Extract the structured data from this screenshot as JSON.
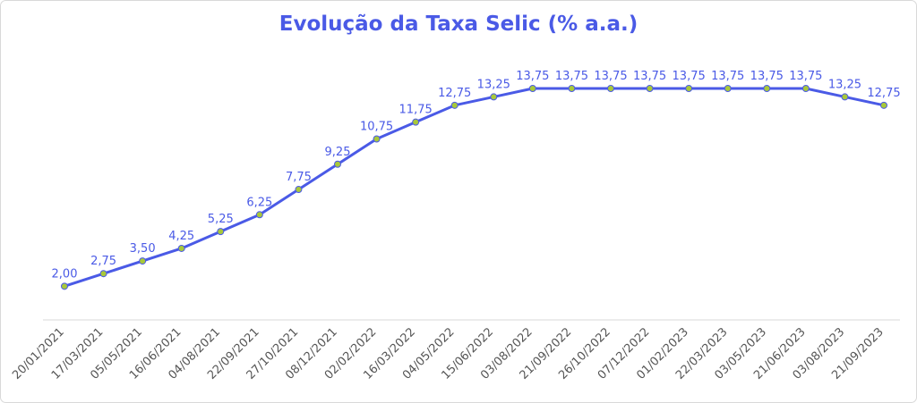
{
  "chart_data": {
    "type": "line",
    "title": "Evolução da Taxa Selic (% a.a.)",
    "categories": [
      "20/01/2021",
      "17/03/2021",
      "05/05/2021",
      "16/06/2021",
      "04/08/2021",
      "22/09/2021",
      "27/10/2021",
      "08/12/2021",
      "02/02/2022",
      "16/03/2022",
      "04/05/2022",
      "15/06/2022",
      "03/08/2022",
      "21/09/2022",
      "26/10/2022",
      "07/12/2022",
      "01/02/2023",
      "22/03/2023",
      "03/05/2023",
      "21/06/2023",
      "03/08/2023",
      "21/09/2023"
    ],
    "series": [
      {
        "color": "#4a5ae6",
        "marker_color": "#a8c83a",
        "values": [
          2.0,
          2.75,
          3.5,
          4.25,
          5.25,
          6.25,
          7.75,
          9.25,
          10.75,
          11.75,
          12.75,
          13.25,
          13.75,
          13.75,
          13.75,
          13.75,
          13.75,
          13.75,
          13.75,
          13.75,
          13.25,
          12.75
        ],
        "value_labels": [
          "2,00",
          "2,75",
          "3,50",
          "4,25",
          "5,25",
          "6,25",
          "7,75",
          "9,25",
          "10,75",
          "11,75",
          "12,75",
          "13,25",
          "13,75",
          "13,75",
          "13,75",
          "13,75",
          "13,75",
          "13,75",
          "13,75",
          "13,75",
          "13,25",
          "12,75"
        ]
      }
    ]
  }
}
